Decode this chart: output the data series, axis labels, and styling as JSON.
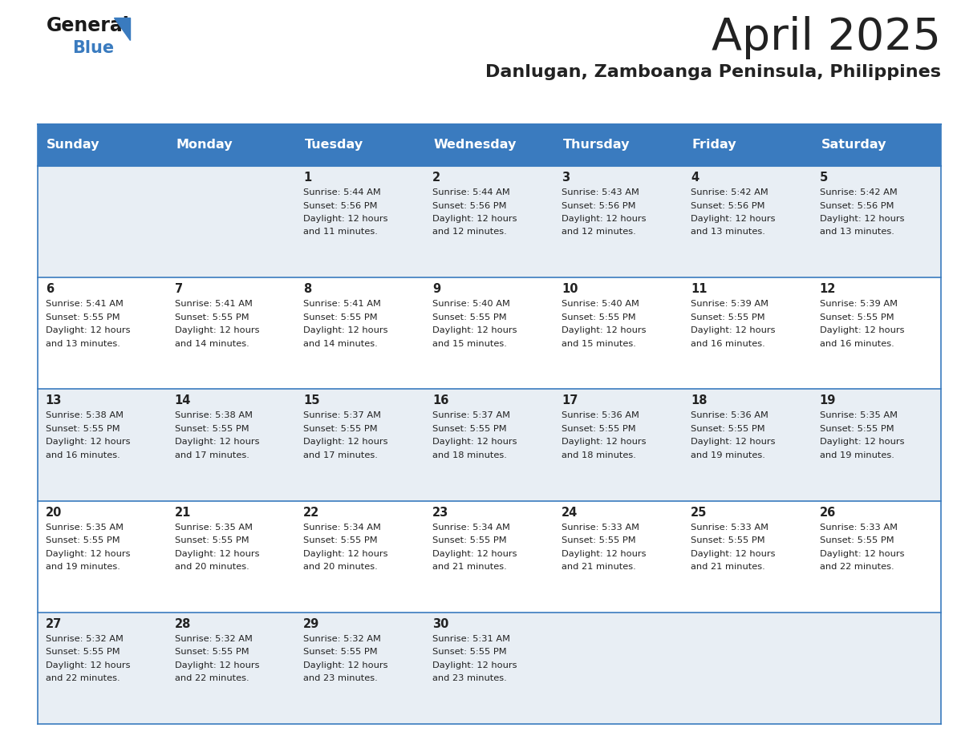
{
  "title": "April 2025",
  "subtitle": "Danlugan, Zamboanga Peninsula, Philippines",
  "header_color": "#3a7bbf",
  "header_text_color": "#ffffff",
  "row_bg_colors": [
    "#e8eef4",
    "#ffffff"
  ],
  "border_color": "#3a7bbf",
  "text_color": "#222222",
  "days_of_week": [
    "Sunday",
    "Monday",
    "Tuesday",
    "Wednesday",
    "Thursday",
    "Friday",
    "Saturday"
  ],
  "calendar": [
    [
      {
        "day": null,
        "sunrise": null,
        "sunset": null,
        "daylight_suffix": null
      },
      {
        "day": null,
        "sunrise": null,
        "sunset": null,
        "daylight_suffix": null
      },
      {
        "day": "1",
        "sunrise": "5:44 AM",
        "sunset": "5:56 PM",
        "daylight_suffix": "11 minutes."
      },
      {
        "day": "2",
        "sunrise": "5:44 AM",
        "sunset": "5:56 PM",
        "daylight_suffix": "12 minutes."
      },
      {
        "day": "3",
        "sunrise": "5:43 AM",
        "sunset": "5:56 PM",
        "daylight_suffix": "12 minutes."
      },
      {
        "day": "4",
        "sunrise": "5:42 AM",
        "sunset": "5:56 PM",
        "daylight_suffix": "13 minutes."
      },
      {
        "day": "5",
        "sunrise": "5:42 AM",
        "sunset": "5:56 PM",
        "daylight_suffix": "13 minutes."
      }
    ],
    [
      {
        "day": "6",
        "sunrise": "5:41 AM",
        "sunset": "5:55 PM",
        "daylight_suffix": "13 minutes."
      },
      {
        "day": "7",
        "sunrise": "5:41 AM",
        "sunset": "5:55 PM",
        "daylight_suffix": "14 minutes."
      },
      {
        "day": "8",
        "sunrise": "5:41 AM",
        "sunset": "5:55 PM",
        "daylight_suffix": "14 minutes."
      },
      {
        "day": "9",
        "sunrise": "5:40 AM",
        "sunset": "5:55 PM",
        "daylight_suffix": "15 minutes."
      },
      {
        "day": "10",
        "sunrise": "5:40 AM",
        "sunset": "5:55 PM",
        "daylight_suffix": "15 minutes."
      },
      {
        "day": "11",
        "sunrise": "5:39 AM",
        "sunset": "5:55 PM",
        "daylight_suffix": "16 minutes."
      },
      {
        "day": "12",
        "sunrise": "5:39 AM",
        "sunset": "5:55 PM",
        "daylight_suffix": "16 minutes."
      }
    ],
    [
      {
        "day": "13",
        "sunrise": "5:38 AM",
        "sunset": "5:55 PM",
        "daylight_suffix": "16 minutes."
      },
      {
        "day": "14",
        "sunrise": "5:38 AM",
        "sunset": "5:55 PM",
        "daylight_suffix": "17 minutes."
      },
      {
        "day": "15",
        "sunrise": "5:37 AM",
        "sunset": "5:55 PM",
        "daylight_suffix": "17 minutes."
      },
      {
        "day": "16",
        "sunrise": "5:37 AM",
        "sunset": "5:55 PM",
        "daylight_suffix": "18 minutes."
      },
      {
        "day": "17",
        "sunrise": "5:36 AM",
        "sunset": "5:55 PM",
        "daylight_suffix": "18 minutes."
      },
      {
        "day": "18",
        "sunrise": "5:36 AM",
        "sunset": "5:55 PM",
        "daylight_suffix": "19 minutes."
      },
      {
        "day": "19",
        "sunrise": "5:35 AM",
        "sunset": "5:55 PM",
        "daylight_suffix": "19 minutes."
      }
    ],
    [
      {
        "day": "20",
        "sunrise": "5:35 AM",
        "sunset": "5:55 PM",
        "daylight_suffix": "19 minutes."
      },
      {
        "day": "21",
        "sunrise": "5:35 AM",
        "sunset": "5:55 PM",
        "daylight_suffix": "20 minutes."
      },
      {
        "day": "22",
        "sunrise": "5:34 AM",
        "sunset": "5:55 PM",
        "daylight_suffix": "20 minutes."
      },
      {
        "day": "23",
        "sunrise": "5:34 AM",
        "sunset": "5:55 PM",
        "daylight_suffix": "21 minutes."
      },
      {
        "day": "24",
        "sunrise": "5:33 AM",
        "sunset": "5:55 PM",
        "daylight_suffix": "21 minutes."
      },
      {
        "day": "25",
        "sunrise": "5:33 AM",
        "sunset": "5:55 PM",
        "daylight_suffix": "21 minutes."
      },
      {
        "day": "26",
        "sunrise": "5:33 AM",
        "sunset": "5:55 PM",
        "daylight_suffix": "22 minutes."
      }
    ],
    [
      {
        "day": "27",
        "sunrise": "5:32 AM",
        "sunset": "5:55 PM",
        "daylight_suffix": "22 minutes."
      },
      {
        "day": "28",
        "sunrise": "5:32 AM",
        "sunset": "5:55 PM",
        "daylight_suffix": "22 minutes."
      },
      {
        "day": "29",
        "sunrise": "5:32 AM",
        "sunset": "5:55 PM",
        "daylight_suffix": "23 minutes."
      },
      {
        "day": "30",
        "sunrise": "5:31 AM",
        "sunset": "5:55 PM",
        "daylight_suffix": "23 minutes."
      },
      {
        "day": null,
        "sunrise": null,
        "sunset": null,
        "daylight_suffix": null
      },
      {
        "day": null,
        "sunrise": null,
        "sunset": null,
        "daylight_suffix": null
      },
      {
        "day": null,
        "sunrise": null,
        "sunset": null,
        "daylight_suffix": null
      }
    ]
  ]
}
